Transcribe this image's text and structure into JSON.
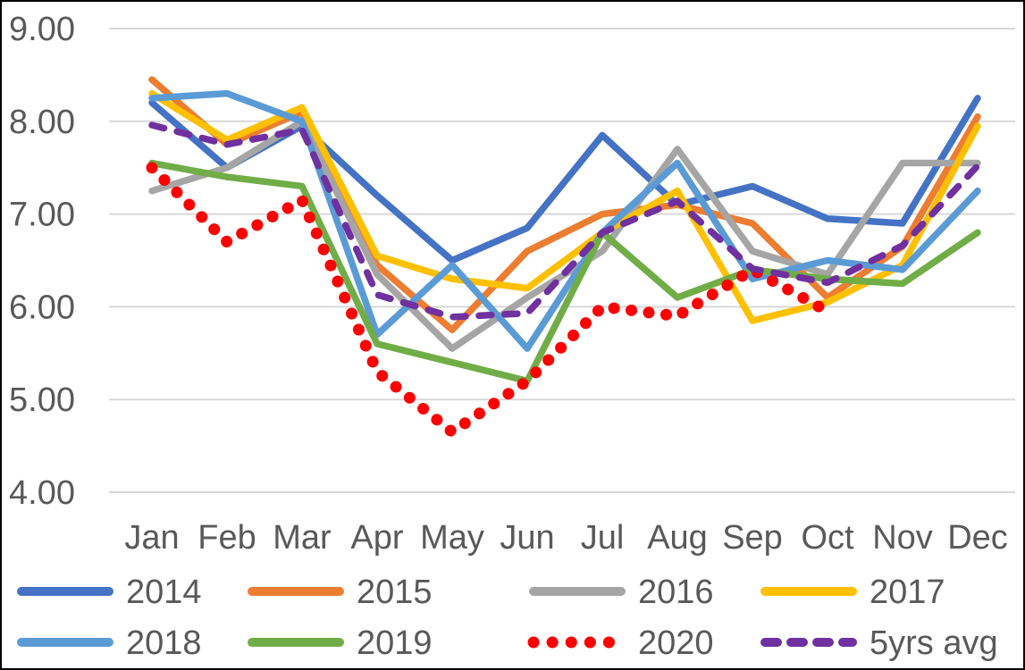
{
  "chart_data": {
    "type": "line",
    "categories": [
      "Jan",
      "Feb",
      "Mar",
      "Apr",
      "May",
      "Jun",
      "Jul",
      "Aug",
      "Sep",
      "Oct",
      "Nov",
      "Dec"
    ],
    "y_axis": {
      "min": 4,
      "max": 9,
      "step": 1,
      "tick_labels_top_to_bottom": [
        "9.00",
        "8.00",
        "7.00",
        "6.00",
        "5.00",
        "4.00"
      ]
    },
    "grid": true,
    "legend_position": "bottom",
    "text_color": "#595959",
    "gridline_color": "#D9D9D9",
    "background": "#FFFFFF",
    "border_color": "#000000",
    "series": [
      {
        "name": "2014",
        "color": "#4472C4",
        "style": "solid",
        "values": [
          8.2,
          7.5,
          7.95,
          7.2,
          6.5,
          6.85,
          7.85,
          7.1,
          7.3,
          6.95,
          6.9,
          8.25
        ]
      },
      {
        "name": "2015",
        "color": "#ED7D31",
        "style": "solid",
        "values": [
          8.45,
          7.75,
          8.1,
          6.45,
          5.75,
          6.6,
          7.0,
          7.1,
          6.9,
          6.1,
          6.65,
          8.05
        ]
      },
      {
        "name": "2016",
        "color": "#A5A5A5",
        "style": "solid",
        "values": [
          7.25,
          7.5,
          8.0,
          6.35,
          5.55,
          6.1,
          6.6,
          7.7,
          6.6,
          6.35,
          7.55,
          7.55
        ]
      },
      {
        "name": "2017",
        "color": "#FFC000",
        "style": "solid",
        "values": [
          8.3,
          7.8,
          8.15,
          6.55,
          6.3,
          6.2,
          6.8,
          7.25,
          5.85,
          6.05,
          6.45,
          7.95
        ]
      },
      {
        "name": "2018",
        "color": "#5B9BD5",
        "style": "solid",
        "values": [
          8.25,
          8.3,
          8.0,
          5.7,
          6.45,
          5.55,
          6.8,
          7.55,
          6.3,
          6.5,
          6.4,
          7.25
        ]
      },
      {
        "name": "2019",
        "color": "#70AD47",
        "style": "solid",
        "values": [
          7.55,
          7.4,
          7.3,
          5.6,
          5.4,
          5.2,
          6.8,
          6.1,
          6.4,
          6.3,
          6.25,
          6.8
        ]
      },
      {
        "name": "2020",
        "color": "#FF0000",
        "style": "dotted",
        "values": [
          7.5,
          6.7,
          7.15,
          5.3,
          4.65,
          5.2,
          6.0,
          5.9,
          6.4,
          5.95,
          null,
          null
        ]
      },
      {
        "name": "5yrs avg",
        "color": "#7030A0",
        "style": "dashed",
        "values": [
          7.96,
          7.75,
          7.91,
          6.13,
          5.89,
          5.93,
          6.8,
          7.14,
          6.41,
          6.26,
          6.66,
          7.52
        ]
      }
    ]
  }
}
